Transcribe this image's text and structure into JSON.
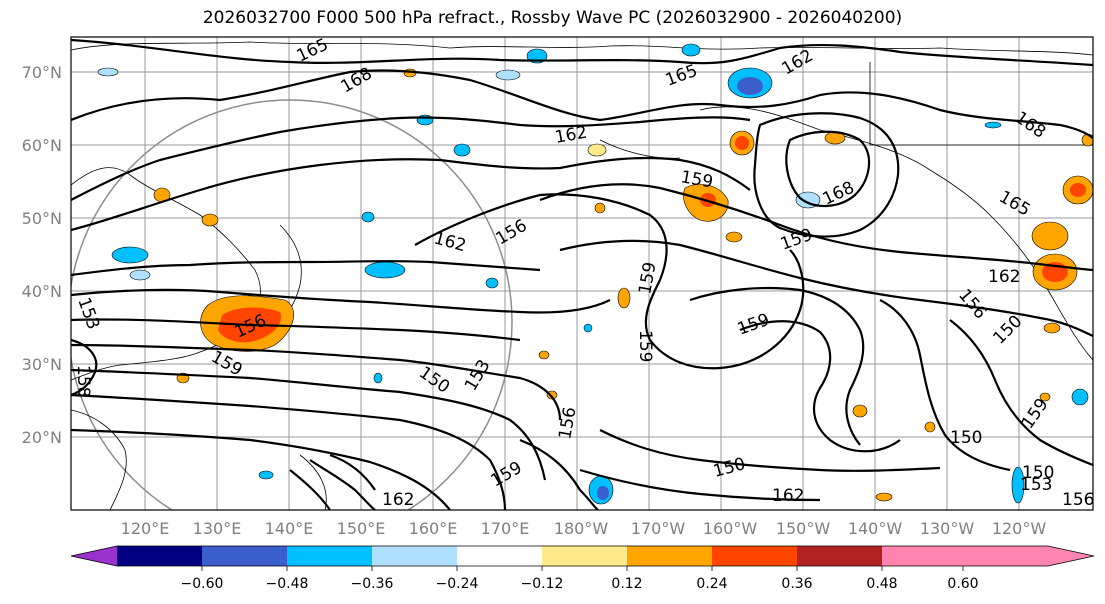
{
  "title": "2026032700 F000 500 hPa refract., Rossby Wave PC (2026032900 - 2026040200)",
  "lat_labels": [
    "70°N",
    "60°N",
    "50°N",
    "40°N",
    "30°N",
    "20°N"
  ],
  "lon_labels": [
    "120°E",
    "130°E",
    "140°E",
    "150°E",
    "160°E",
    "170°E",
    "180°W",
    "170°W",
    "160°W",
    "150°W",
    "140°W",
    "130°W",
    "120°W"
  ],
  "contour_labels": [
    "165",
    "168",
    "165",
    "162",
    "162",
    "168",
    "159",
    "168",
    "159",
    "162",
    "165",
    "156",
    "162",
    "153",
    "159",
    "159",
    "156",
    "156",
    "159",
    "159",
    "150",
    "150",
    "153",
    "159",
    "156",
    "162",
    "150",
    "159",
    "162",
    "150",
    "150",
    "153",
    "158",
    "156"
  ],
  "colorbar": {
    "colors": [
      "#9932cc",
      "#000080",
      "#3a5fcd",
      "#00bfff",
      "#b0e0ff",
      "#ffffff",
      "#ffe98a",
      "#ffa500",
      "#ff4500",
      "#b22222",
      "#ff85b0"
    ],
    "tick_labels": [
      "−0.60",
      "−0.48",
      "−0.36",
      "−0.24",
      "−0.12",
      "0.12",
      "0.24",
      "0.36",
      "0.48",
      "0.60"
    ]
  }
}
